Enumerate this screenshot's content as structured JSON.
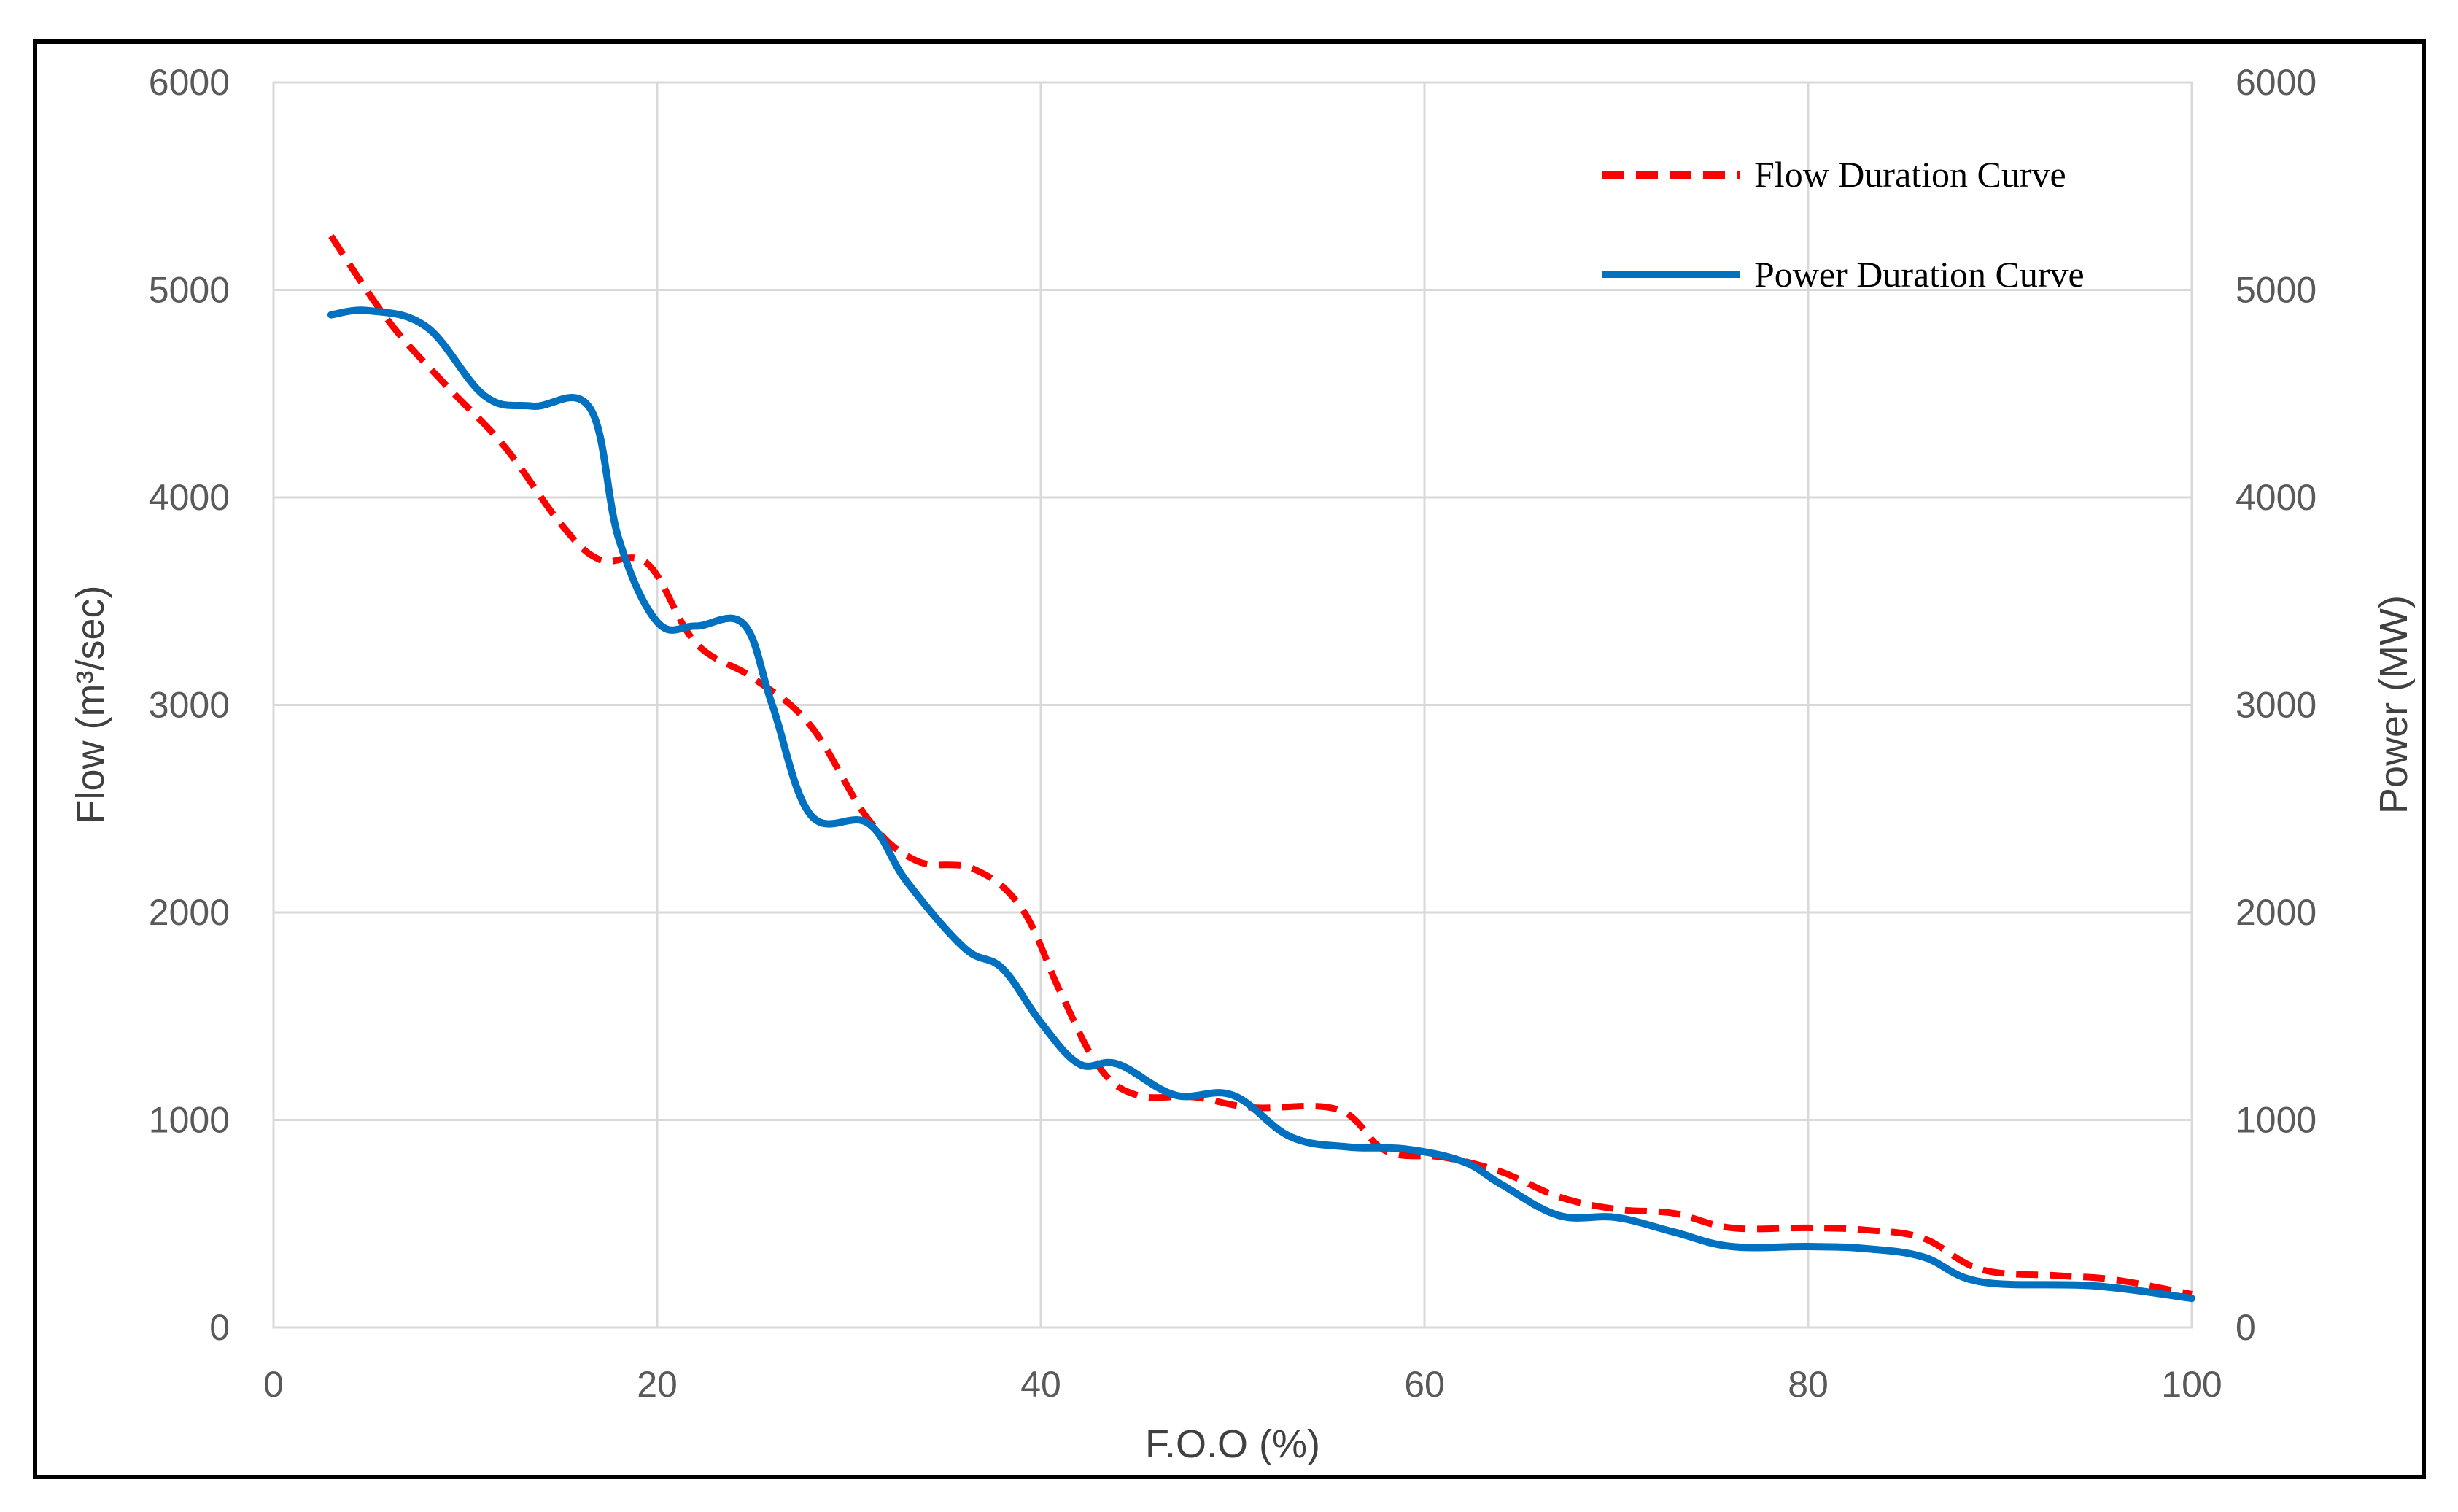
{
  "chart_data": {
    "type": "line",
    "xlabel": "F.O.O (%)",
    "ylabel_left": "Flow (m³/sec)",
    "ylabel_right": "Power (MW)",
    "xlim": [
      0,
      100
    ],
    "ylim": [
      0,
      6000
    ],
    "y2lim": [
      0,
      6000
    ],
    "x_ticks": [
      "0",
      "20",
      "40",
      "60",
      "80",
      "100"
    ],
    "y_ticks": [
      "0",
      "1000",
      "2000",
      "3000",
      "4000",
      "5000",
      "6000"
    ],
    "y2_ticks": [
      "0",
      "1000",
      "2000",
      "3000",
      "4000",
      "5000",
      "6000"
    ],
    "grid": true,
    "legend_position": "top-right",
    "series": [
      {
        "name": "Flow Duration Curve",
        "axis": "left",
        "color": "#ff0000",
        "style": "dashed",
        "points": [
          [
            3,
            5260
          ],
          [
            6,
            4850
          ],
          [
            9,
            4540
          ],
          [
            12,
            4250
          ],
          [
            15,
            3870
          ],
          [
            17,
            3700
          ],
          [
            19.5,
            3680
          ],
          [
            22,
            3300
          ],
          [
            25,
            3130
          ],
          [
            28,
            2900
          ],
          [
            31,
            2450
          ],
          [
            33.5,
            2250
          ],
          [
            36.5,
            2210
          ],
          [
            39,
            2020
          ],
          [
            41,
            1620
          ],
          [
            43,
            1260
          ],
          [
            45,
            1120
          ],
          [
            48,
            1110
          ],
          [
            51,
            1060
          ],
          [
            55.5,
            1050
          ],
          [
            58,
            850
          ],
          [
            61,
            820
          ],
          [
            64,
            750
          ],
          [
            67,
            630
          ],
          [
            70,
            570
          ],
          [
            73,
            550
          ],
          [
            76,
            480
          ],
          [
            80,
            480
          ],
          [
            83,
            470
          ],
          [
            86,
            430
          ],
          [
            89,
            280
          ],
          [
            93,
            250
          ],
          [
            96,
            230
          ],
          [
            100,
            160
          ]
        ]
      },
      {
        "name": "Power Duration Curve",
        "axis": "right",
        "color": "#0070c0",
        "style": "solid",
        "points": [
          [
            3,
            4880
          ],
          [
            5,
            4900
          ],
          [
            8,
            4820
          ],
          [
            11,
            4490
          ],
          [
            13.5,
            4440
          ],
          [
            16.5,
            4430
          ],
          [
            18,
            3800
          ],
          [
            20,
            3400
          ],
          [
            22,
            3380
          ],
          [
            24.5,
            3390
          ],
          [
            26,
            3000
          ],
          [
            28,
            2470
          ],
          [
            31,
            2430
          ],
          [
            33,
            2150
          ],
          [
            36,
            1830
          ],
          [
            38,
            1730
          ],
          [
            40,
            1470
          ],
          [
            42,
            1270
          ],
          [
            44,
            1270
          ],
          [
            47,
            1120
          ],
          [
            50,
            1120
          ],
          [
            53,
            920
          ],
          [
            56,
            870
          ],
          [
            59,
            860
          ],
          [
            62,
            800
          ],
          [
            64,
            690
          ],
          [
            67,
            540
          ],
          [
            70,
            530
          ],
          [
            73,
            460
          ],
          [
            76,
            390
          ],
          [
            80,
            390
          ],
          [
            83,
            380
          ],
          [
            86,
            340
          ],
          [
            89,
            220
          ],
          [
            95,
            200
          ],
          [
            100,
            140
          ]
        ]
      }
    ]
  }
}
